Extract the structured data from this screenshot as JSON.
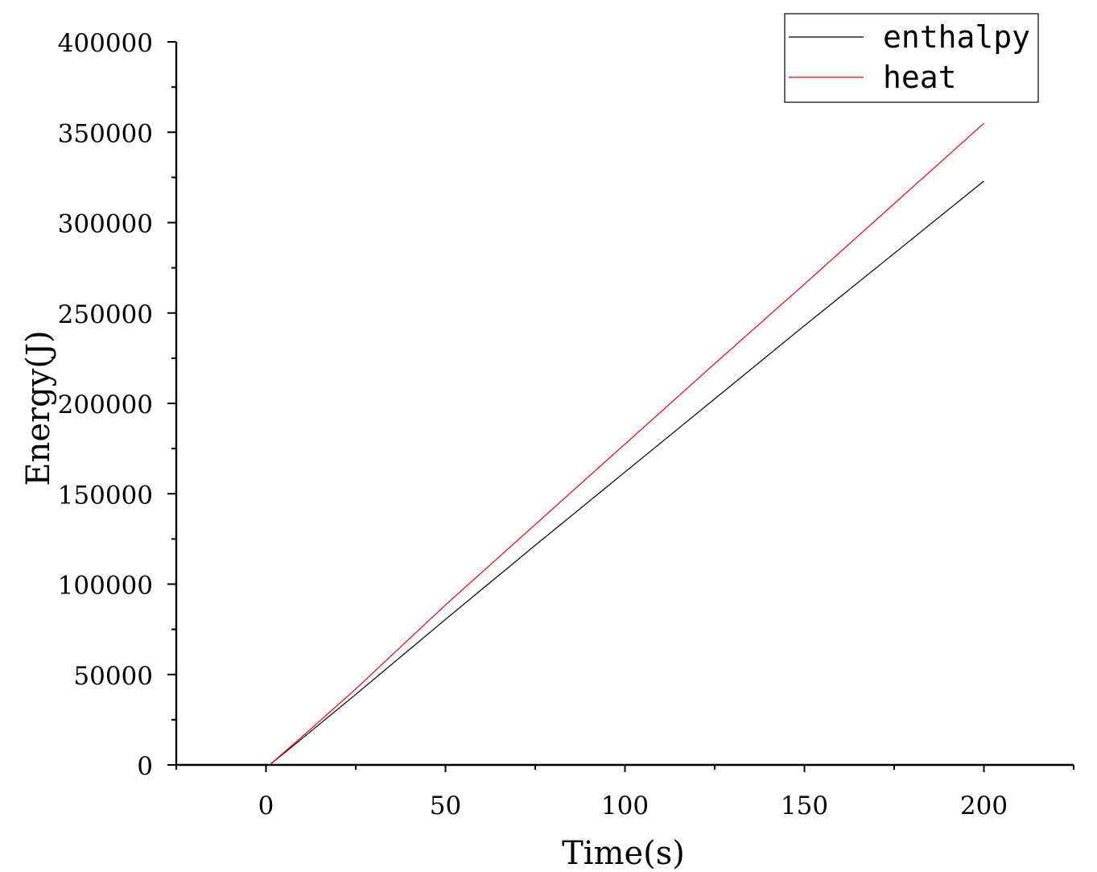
{
  "chart_data": {
    "type": "line",
    "title": "",
    "xlabel": "Time(s)",
    "ylabel": "Energy(J)",
    "xlim": [
      -25,
      225
    ],
    "ylim": [
      0,
      400000
    ],
    "x_ticks": [
      0,
      50,
      100,
      150,
      200
    ],
    "x_tick_labels": [
      "0",
      "50",
      "100",
      "150",
      "200"
    ],
    "y_ticks": [
      0,
      50000,
      100000,
      150000,
      200000,
      250000,
      300000,
      350000,
      400000
    ],
    "y_tick_labels": [
      "0",
      "50000",
      "100000",
      "150000",
      "200000",
      "250000",
      "300000",
      "350000",
      "400000"
    ],
    "grid": false,
    "legend_position": "top-right",
    "series": [
      {
        "name": "enthalpy",
        "color": "#000000",
        "x": [
          1,
          10,
          25,
          50,
          75,
          100,
          125,
          150,
          175,
          200
        ],
        "values": [
          0,
          14500,
          39000,
          80500,
          121500,
          162000,
          202500,
          243000,
          283000,
          323000
        ]
      },
      {
        "name": "heat",
        "color": "#e8000b",
        "x": [
          1,
          10,
          25,
          50,
          75,
          100,
          125,
          150,
          175,
          200
        ],
        "values": [
          0,
          15500,
          42000,
          88500,
          133000,
          177500,
          222000,
          266000,
          310500,
          355000
        ]
      }
    ]
  }
}
